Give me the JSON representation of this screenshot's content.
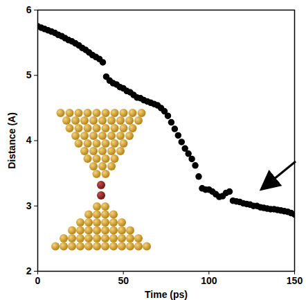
{
  "chart_data": {
    "type": "scatter",
    "x_label": "Time (ps)",
    "y_label": "Distance (A)",
    "xlim": [
      0,
      150
    ],
    "xticks": [
      0,
      50,
      100,
      150
    ],
    "ylim": [
      2,
      6
    ],
    "yticks": [
      2,
      3,
      4,
      5,
      6
    ],
    "marker": "circle",
    "color": "#000000",
    "x": [
      0,
      2,
      4,
      6,
      8,
      10,
      12,
      14,
      16,
      18,
      20,
      22,
      24,
      26,
      28,
      30,
      32,
      34,
      36,
      38,
      40,
      42,
      44,
      46,
      48,
      50,
      52,
      54,
      56,
      58,
      60,
      62,
      64,
      66,
      68,
      70,
      72,
      74,
      76,
      78,
      80,
      82,
      84,
      86,
      88,
      90,
      92,
      94,
      96,
      98,
      100,
      102,
      104,
      106,
      108,
      110,
      112,
      114,
      116,
      118,
      120,
      122,
      124,
      126,
      128,
      130,
      132,
      134,
      136,
      138,
      140,
      142,
      144,
      146,
      148,
      150
    ],
    "values": [
      5.75,
      5.73,
      5.71,
      5.69,
      5.67,
      5.65,
      5.62,
      5.6,
      5.57,
      5.54,
      5.52,
      5.49,
      5.46,
      5.42,
      5.39,
      5.35,
      5.31,
      5.28,
      5.25,
      5.2,
      4.98,
      4.92,
      4.88,
      4.86,
      4.82,
      4.8,
      4.76,
      4.74,
      4.7,
      4.66,
      4.65,
      4.62,
      4.6,
      4.58,
      4.56,
      4.54,
      4.5,
      4.45,
      4.38,
      4.28,
      4.18,
      4.08,
      3.98,
      3.88,
      3.8,
      3.72,
      3.62,
      3.45,
      3.27,
      3.25,
      3.25,
      3.22,
      3.18,
      3.14,
      3.15,
      3.2,
      3.22,
      3.08,
      3.07,
      3.06,
      3.04,
      3.03,
      3.02,
      3.0,
      3.0,
      2.98,
      2.97,
      2.96,
      2.95,
      2.95,
      2.94,
      2.93,
      2.92,
      2.91,
      2.89,
      2.87
    ]
  }
}
